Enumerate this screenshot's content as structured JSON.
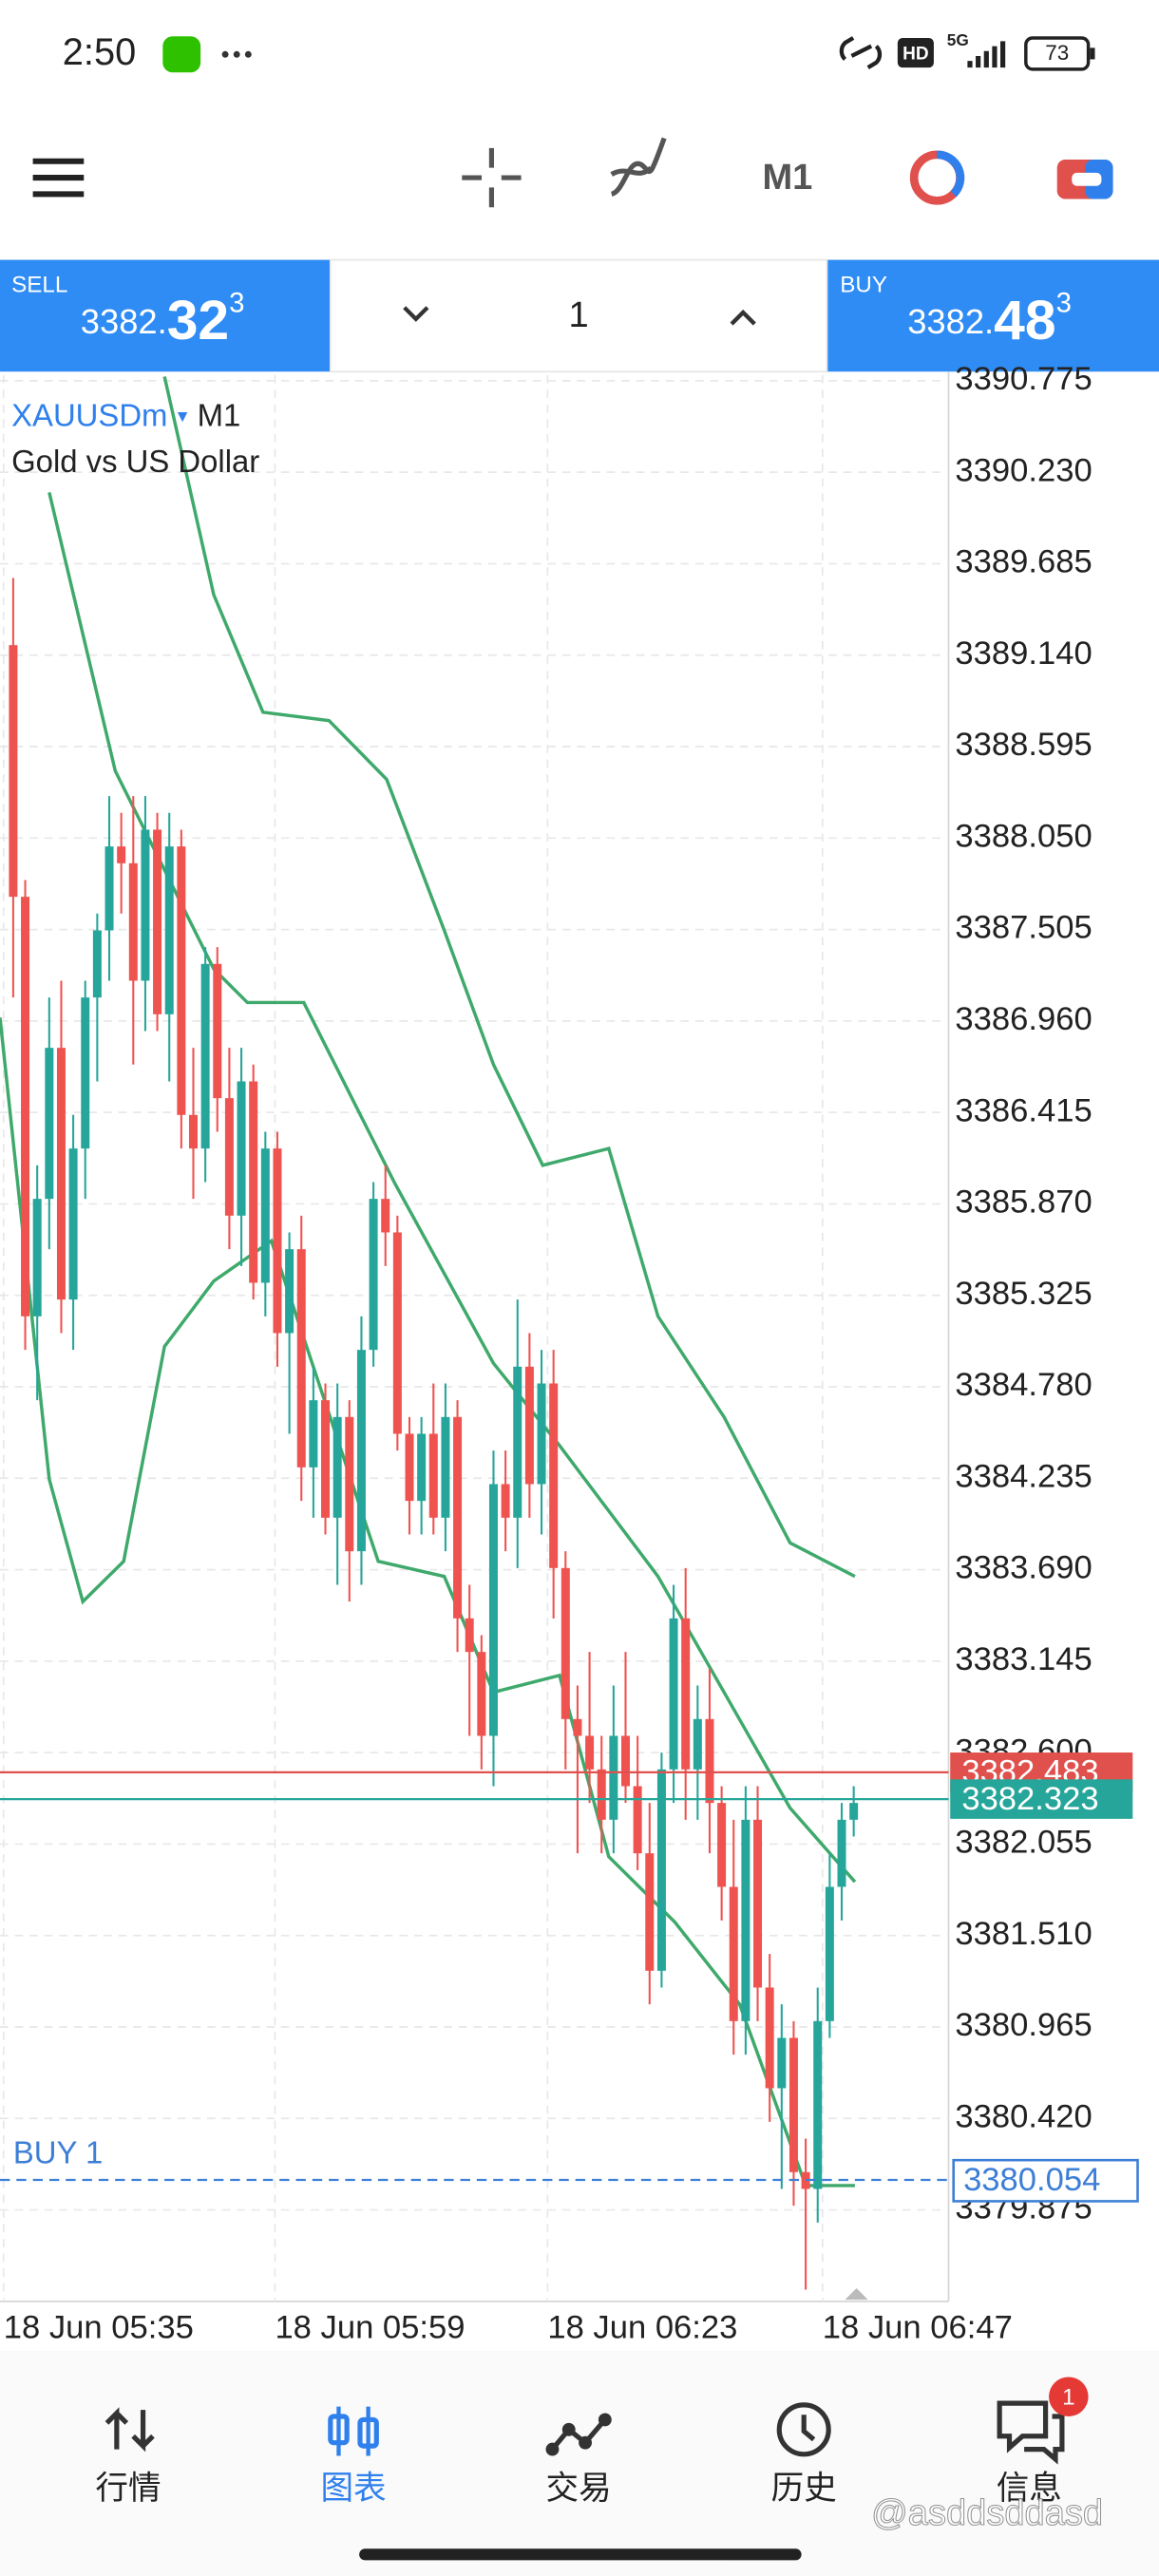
{
  "status_bar": {
    "time": "2:50",
    "hd": "HD",
    "network": "5G",
    "battery": "73"
  },
  "toolbar": {
    "timeframe": "M1"
  },
  "trade_panel": {
    "sell": {
      "label": "SELL",
      "price_main": "3382.",
      "price_big": "32",
      "price_sup": "3"
    },
    "volume": "1",
    "buy": {
      "label": "BUY",
      "price_main": "3382.",
      "price_big": "48",
      "price_sup": "3"
    }
  },
  "chart_data": {
    "type": "candlestick",
    "symbol": "XAUUSDm",
    "timeframe": "M1",
    "subtitle": "Gold vs US Dollar",
    "xlim": [
      -1.1,
      77.9
    ],
    "xticks": [
      {
        "value": -0.8,
        "label": "18 Jun 05:35"
      },
      {
        "value": 21.8,
        "label": "18 Jun 05:59"
      },
      {
        "value": 44.5,
        "label": "18 Jun 06:23"
      },
      {
        "value": 67.4,
        "label": "18 Jun 06:47"
      }
    ],
    "ylim": [
      3379.33,
      3390.81
    ],
    "yticks": [
      {
        "value": 3390.775,
        "label": "3390.775"
      },
      {
        "value": 3390.23,
        "label": "3390.230"
      },
      {
        "value": 3389.685,
        "label": "3389.685"
      },
      {
        "value": 3389.14,
        "label": "3389.140"
      },
      {
        "value": 3388.595,
        "label": "3388.595"
      },
      {
        "value": 3388.05,
        "label": "3388.050"
      },
      {
        "value": 3387.505,
        "label": "3387.505"
      },
      {
        "value": 3386.96,
        "label": "3386.960"
      },
      {
        "value": 3386.415,
        "label": "3386.415"
      },
      {
        "value": 3385.87,
        "label": "3385.870"
      },
      {
        "value": 3385.325,
        "label": "3385.325"
      },
      {
        "value": 3384.78,
        "label": "3384.780"
      },
      {
        "value": 3384.235,
        "label": "3384.235"
      },
      {
        "value": 3383.69,
        "label": "3383.690"
      },
      {
        "value": 3383.145,
        "label": "3383.145"
      },
      {
        "value": 3382.6,
        "label": "3382.600"
      },
      {
        "value": 3382.055,
        "label": "3382.055"
      },
      {
        "value": 3381.51,
        "label": "3381.510"
      },
      {
        "value": 3380.965,
        "label": "3380.965"
      },
      {
        "value": 3380.42,
        "label": "3380.420"
      },
      {
        "value": 3379.875,
        "label": "3379.875"
      }
    ],
    "grid": true,
    "up_color": "#26a69a",
    "down_color": "#ef5350",
    "band_color": "#3fa96b",
    "open": [
      3389.2,
      3387.7,
      3385.2,
      3385.9,
      3386.8,
      3385.3,
      3386.2,
      3387.1,
      3387.5,
      3388.0,
      3387.9,
      3387.2,
      3388.1,
      3387.0,
      3388.0,
      3386.4,
      3386.2,
      3387.3,
      3386.5,
      3385.8,
      3386.6,
      3385.4,
      3386.2,
      3385.1,
      3385.6,
      3384.3,
      3384.7,
      3384.0,
      3384.6,
      3383.8,
      3385.0,
      3385.9,
      3385.7,
      3384.5,
      3384.1,
      3384.5,
      3384.0,
      3384.6,
      3383.4,
      3383.2,
      3382.7,
      3384.2,
      3384.0,
      3384.9,
      3384.2,
      3384.8,
      3383.7,
      3382.8,
      3382.7,
      3382.5,
      3382.2,
      3382.7,
      3382.4,
      3382.0,
      3381.3,
      3382.5,
      3383.4,
      3382.5,
      3382.8,
      3382.3,
      3381.8,
      3381.0,
      3382.2,
      3381.2,
      3380.6,
      3380.9,
      3380.1,
      3380.0,
      3381.0,
      3381.8,
      3382.2
    ],
    "high": [
      3389.6,
      3387.8,
      3386.1,
      3387.1,
      3387.2,
      3386.4,
      3387.2,
      3387.6,
      3388.3,
      3388.2,
      3388.3,
      3388.3,
      3388.2,
      3388.2,
      3388.1,
      3386.8,
      3387.4,
      3387.4,
      3386.8,
      3386.8,
      3386.7,
      3386.3,
      3386.3,
      3385.7,
      3385.8,
      3384.9,
      3384.8,
      3384.8,
      3384.7,
      3385.2,
      3386.0,
      3386.1,
      3385.8,
      3384.6,
      3384.6,
      3384.8,
      3384.8,
      3384.7,
      3383.6,
      3383.3,
      3384.4,
      3384.4,
      3385.3,
      3385.1,
      3385.0,
      3385.0,
      3383.8,
      3383.0,
      3383.2,
      3382.7,
      3383.0,
      3383.2,
      3382.7,
      3382.3,
      3382.6,
      3383.6,
      3383.7,
      3383.0,
      3383.1,
      3382.4,
      3382.2,
      3382.4,
      3382.4,
      3381.4,
      3381.1,
      3381.0,
      3380.3,
      3381.2,
      3382.0,
      3382.3,
      3382.4
    ],
    "low": [
      3387.1,
      3385.0,
      3384.7,
      3385.6,
      3385.1,
      3385.0,
      3385.9,
      3386.6,
      3387.2,
      3387.6,
      3386.7,
      3386.9,
      3386.9,
      3386.6,
      3386.2,
      3385.9,
      3386.0,
      3386.3,
      3385.6,
      3385.5,
      3385.3,
      3385.2,
      3384.9,
      3384.5,
      3384.1,
      3384.0,
      3383.9,
      3383.6,
      3383.5,
      3383.6,
      3384.9,
      3385.5,
      3384.4,
      3383.9,
      3383.9,
      3383.9,
      3383.8,
      3383.2,
      3382.7,
      3382.5,
      3382.4,
      3383.8,
      3383.7,
      3384.0,
      3383.9,
      3383.4,
      3382.5,
      3382.0,
      3382.3,
      3382.0,
      3382.0,
      3382.3,
      3381.9,
      3381.1,
      3381.2,
      3382.3,
      3382.2,
      3382.2,
      3382.0,
      3381.6,
      3380.8,
      3380.8,
      3381.0,
      3380.4,
      3380.0,
      3379.9,
      3379.4,
      3379.8,
      3380.9,
      3381.6,
      3382.1
    ],
    "close": [
      3387.7,
      3385.2,
      3385.9,
      3386.8,
      3385.3,
      3386.2,
      3387.1,
      3387.5,
      3388.0,
      3387.9,
      3387.2,
      3388.1,
      3387.0,
      3388.0,
      3386.4,
      3386.2,
      3387.3,
      3386.5,
      3385.8,
      3386.6,
      3385.4,
      3386.2,
      3385.1,
      3385.6,
      3384.3,
      3384.7,
      3384.0,
      3384.6,
      3383.8,
      3385.0,
      3385.9,
      3385.7,
      3384.5,
      3384.1,
      3384.5,
      3384.0,
      3384.6,
      3383.4,
      3383.2,
      3382.7,
      3384.2,
      3384.0,
      3384.9,
      3384.2,
      3384.8,
      3383.7,
      3382.8,
      3382.7,
      3382.5,
      3382.2,
      3382.7,
      3382.4,
      3382.0,
      3381.3,
      3382.5,
      3383.4,
      3382.5,
      3382.8,
      3382.3,
      3381.8,
      3381.0,
      3382.2,
      3381.2,
      3380.6,
      3380.9,
      3380.1,
      3380.0,
      3381.0,
      3381.8,
      3382.2,
      3382.3
    ],
    "bands": [
      {
        "x": [
          12.6,
          16.7,
          20.8,
          26.3,
          31.1,
          35.9,
          40,
          44.1,
          49.6,
          53.7,
          59.2,
          64.7,
          70.1
        ],
        "values": [
          3390.8,
          3389.5,
          3388.8,
          3388.75,
          3388.4,
          3387.5,
          3386.7,
          3386.1,
          3386.2,
          3385.2,
          3384.6,
          3383.85,
          3383.65
        ]
      },
      {
        "x": [
          3,
          8.5,
          12.6,
          16.7,
          19.5,
          24.2,
          31.8,
          40,
          45.5,
          53.7,
          59.2,
          64.7,
          70.1
        ],
        "values": [
          3390.11,
          3388.45,
          3387.86,
          3387.27,
          3387.07,
          3387.07,
          3385.99,
          3384.92,
          3384.43,
          3383.65,
          3382.96,
          3382.27,
          3381.83
        ]
      },
      {
        "x": [
          -1.1,
          3,
          5.8,
          9.2,
          12.6,
          16.7,
          21.5,
          24.9,
          30.4,
          35.9,
          40,
          45.5,
          49.6,
          55.1,
          60.5,
          66,
          70.1
        ],
        "values": [
          3386.98,
          3384.23,
          3383.5,
          3383.74,
          3385.02,
          3385.41,
          3385.65,
          3384.92,
          3383.74,
          3383.65,
          3382.96,
          3383.06,
          3381.98,
          3381.59,
          3381.1,
          3380.02,
          3380.02
        ]
      }
    ],
    "price_lines": [
      {
        "value": 3382.483,
        "label": "3382.483",
        "color": "#e0504c"
      },
      {
        "value": 3382.323,
        "label": "3382.323",
        "color": "#26a69a"
      },
      {
        "name": "BUY 1",
        "value": 3380.054,
        "label": "3380.054",
        "color": "#3d7fd6",
        "dashed": true
      }
    ]
  },
  "nav": [
    {
      "label": "行情"
    },
    {
      "label": "图表",
      "active": true
    },
    {
      "label": "交易"
    },
    {
      "label": "历史"
    },
    {
      "label": "信息",
      "badge": "1"
    }
  ],
  "watermark": "@asddsddasd"
}
